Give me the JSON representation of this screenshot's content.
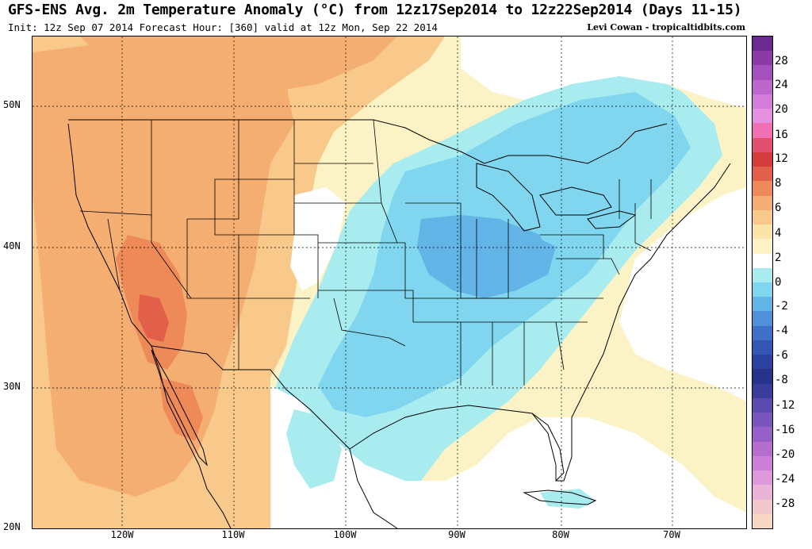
{
  "header": {
    "title": "GFS-ENS Avg. 2m Temperature Anomaly (°C) from 12z17Sep2014 to 12z22Sep2014 (Days 11-15)",
    "subtitle": "Init: 12z Sep 07 2014 Forecast Hour: [360] valid at 12z Mon, Sep 22 2014",
    "credit": "Levi Cowan - tropicaltidbits.com"
  },
  "axes": {
    "lat_labels": [
      "50N",
      "40N",
      "30N",
      "20N"
    ],
    "lon_labels": [
      "120W",
      "110W",
      "100W",
      "90W",
      "80W",
      "70W"
    ]
  },
  "colorbar": {
    "labels": [
      "28",
      "24",
      "20",
      "16",
      "12",
      "8",
      "6",
      "4",
      "2",
      "0",
      "-2",
      "-4",
      "-6",
      "-8",
      "-12",
      "-16",
      "-20",
      "-24",
      "-28"
    ],
    "colors": [
      "#6b2a93",
      "#8a3aa9",
      "#a450bd",
      "#bd66ce",
      "#d37cdb",
      "#e591df",
      "#f06fb5",
      "#e2506e",
      "#d43c3c",
      "#e2604a",
      "#ee8a57",
      "#f5ae72",
      "#f8c98b",
      "#fbe4a8",
      "#fcf2c6",
      "#ffffff",
      "#a8ecef",
      "#7fd6ee",
      "#62b3e6",
      "#4f90d9",
      "#3f6fc8",
      "#3356b4",
      "#2b42a0",
      "#27328a",
      "#3a3c9c",
      "#5a4cae",
      "#7a55be",
      "#9660c8",
      "#b56dcf",
      "#cc7fd6",
      "#dd99d9",
      "#eab3d8",
      "#f3c8cc",
      "#f8d6c4"
    ]
  }
}
